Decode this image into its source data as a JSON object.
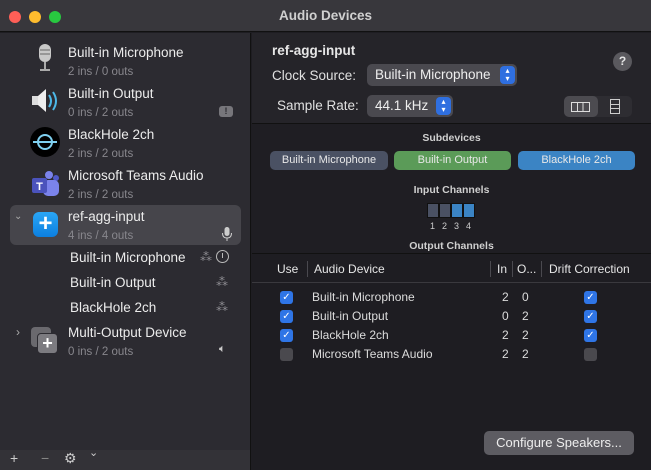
{
  "window": {
    "title": "Audio Devices"
  },
  "sidebar": {
    "devices": [
      {
        "name": "Built-in Microphone",
        "sub": "2 ins / 0 outs",
        "icon": "microphone-icon"
      },
      {
        "name": "Built-in Output",
        "sub": "0 ins / 2 outs",
        "icon": "speaker-icon",
        "badge": "alert-badge-icon"
      },
      {
        "name": "BlackHole 2ch",
        "sub": "2 ins / 2 outs",
        "icon": "blackhole-icon"
      },
      {
        "name": "Microsoft Teams Audio",
        "sub": "2 ins / 2 outs",
        "icon": "teams-icon"
      },
      {
        "name": "ref-agg-input",
        "sub": "4 ins / 4 outs",
        "icon": "aggregate-device-icon",
        "selected": true,
        "expanded": true
      },
      {
        "name": "Multi-Output Device",
        "sub": "0 ins / 2 outs",
        "icon": "multi-output-icon",
        "expanded": false
      }
    ],
    "subitems": [
      "Built-in Microphone",
      "Built-in Output",
      "BlackHole 2ch"
    ],
    "toolbar": {
      "add": "+",
      "remove": "−",
      "gear": "⚙",
      "menu": "⌄"
    }
  },
  "detail": {
    "device_name": "ref-agg-input",
    "clock_label": "Clock Source:",
    "clock_value": "Built-in Microphone",
    "rate_label": "Sample Rate:",
    "rate_value": "44.1 kHz",
    "help": "?",
    "subdevices_title": "Subdevices",
    "subdevices": [
      {
        "name": "Built-in Microphone",
        "color": "#4a5163"
      },
      {
        "name": "Built-in Output",
        "color": "#5b9b58"
      },
      {
        "name": "BlackHole 2ch",
        "color": "#3b84c4"
      }
    ],
    "input_channels_title": "Input Channels",
    "input_channels": [
      {
        "n": "1",
        "color": "#4a5163"
      },
      {
        "n": "2",
        "color": "#4a5163"
      },
      {
        "n": "3",
        "color": "#3b84c4"
      },
      {
        "n": "4",
        "color": "#3b84c4"
      }
    ],
    "output_channels_title": "Output Channels",
    "table": {
      "headers": {
        "use": "Use",
        "device": "Audio Device",
        "in": "In",
        "out": "O...",
        "drift": "Drift Correction"
      },
      "rows": [
        {
          "use": true,
          "device": "Built-in Microphone",
          "in": "2",
          "out": "0",
          "drift": true
        },
        {
          "use": true,
          "device": "Built-in Output",
          "in": "0",
          "out": "2",
          "drift": true
        },
        {
          "use": true,
          "device": "BlackHole 2ch",
          "in": "2",
          "out": "2",
          "drift": true
        },
        {
          "use": false,
          "device": "Microsoft Teams Audio",
          "in": "2",
          "out": "2",
          "drift": false
        }
      ]
    },
    "configure_button": "Configure Speakers..."
  }
}
